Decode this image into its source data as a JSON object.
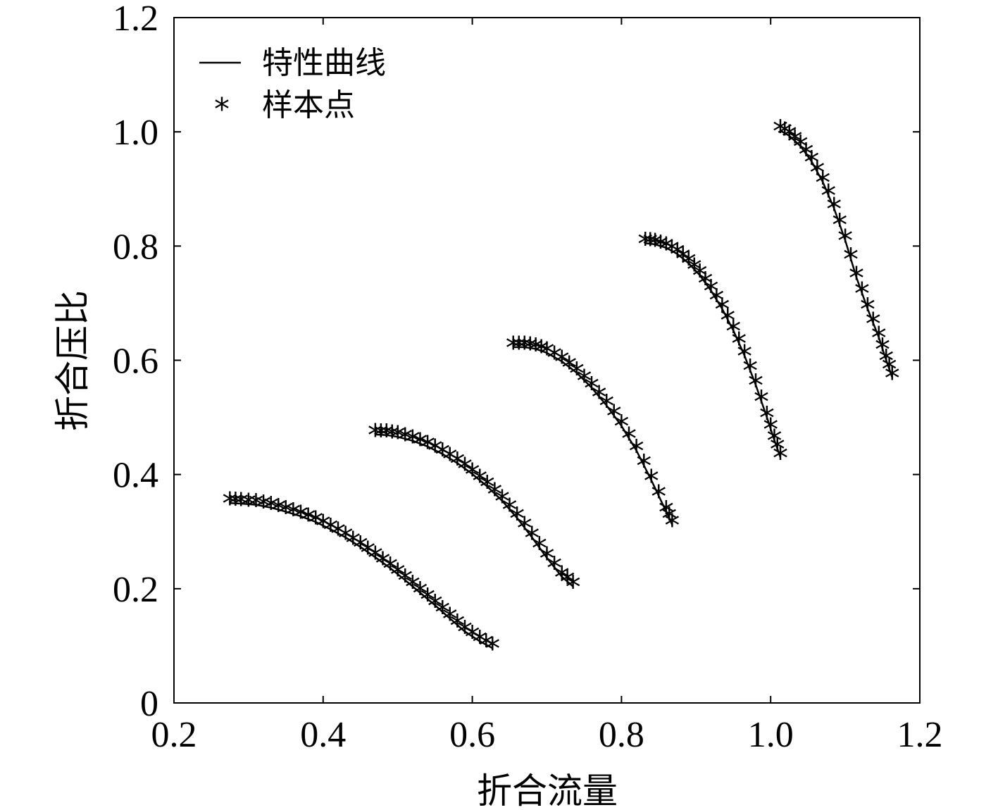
{
  "chart_data": {
    "type": "line",
    "xlabel": "折合流量",
    "ylabel": "折合压比",
    "xlim": [
      0.2,
      1.2
    ],
    "ylim": [
      0,
      1.2
    ],
    "x_ticks": [
      "0.2",
      "0.4",
      "0.6",
      "0.8",
      "1.0",
      "1.2"
    ],
    "y_ticks": [
      "0",
      "0.2",
      "0.4",
      "0.6",
      "0.8",
      "1.0",
      "1.2"
    ],
    "grid": false,
    "legend_position": "top-left",
    "legend": [
      {
        "label": "特性曲线",
        "marker": "line"
      },
      {
        "label": "样本点",
        "marker": "*"
      }
    ],
    "curves": [
      {
        "x": [
          0.275,
          0.29,
          0.31,
          0.33,
          0.35,
          0.37,
          0.39,
          0.41,
          0.43,
          0.45,
          0.47,
          0.49,
          0.51,
          0.53,
          0.55,
          0.57,
          0.59,
          0.61,
          0.627
        ],
        "y": [
          0.35,
          0.349,
          0.347,
          0.342,
          0.335,
          0.327,
          0.317,
          0.304,
          0.29,
          0.273,
          0.255,
          0.236,
          0.215,
          0.193,
          0.171,
          0.148,
          0.125,
          0.108,
          0.096
        ]
      },
      {
        "x": [
          0.47,
          0.485,
          0.5,
          0.52,
          0.54,
          0.56,
          0.58,
          0.6,
          0.62,
          0.64,
          0.66,
          0.68,
          0.7,
          0.72,
          0.735
        ],
        "y": [
          0.47,
          0.469,
          0.466,
          0.459,
          0.449,
          0.436,
          0.42,
          0.401,
          0.379,
          0.354,
          0.324,
          0.29,
          0.254,
          0.221,
          0.204
        ]
      },
      {
        "x": [
          0.655,
          0.67,
          0.685,
          0.7,
          0.72,
          0.74,
          0.76,
          0.78,
          0.8,
          0.82,
          0.84,
          0.86,
          0.868
        ],
        "y": [
          0.623,
          0.623,
          0.62,
          0.613,
          0.598,
          0.578,
          0.552,
          0.521,
          0.485,
          0.442,
          0.39,
          0.335,
          0.312
        ]
      },
      {
        "x": [
          0.832,
          0.845,
          0.86,
          0.875,
          0.89,
          0.905,
          0.92,
          0.935,
          0.95,
          0.965,
          0.98,
          0.995,
          1.005,
          1.013
        ],
        "y": [
          0.805,
          0.803,
          0.797,
          0.786,
          0.77,
          0.749,
          0.722,
          0.69,
          0.652,
          0.608,
          0.557,
          0.5,
          0.46,
          0.43
        ]
      },
      {
        "x": [
          1.013,
          1.025,
          1.04,
          1.055,
          1.07,
          1.085,
          1.1,
          1.115,
          1.13,
          1.145,
          1.155,
          1.163
        ],
        "y": [
          1.002,
          0.993,
          0.975,
          0.948,
          0.912,
          0.866,
          0.81,
          0.745,
          0.69,
          0.64,
          0.6,
          0.57
        ]
      }
    ]
  }
}
